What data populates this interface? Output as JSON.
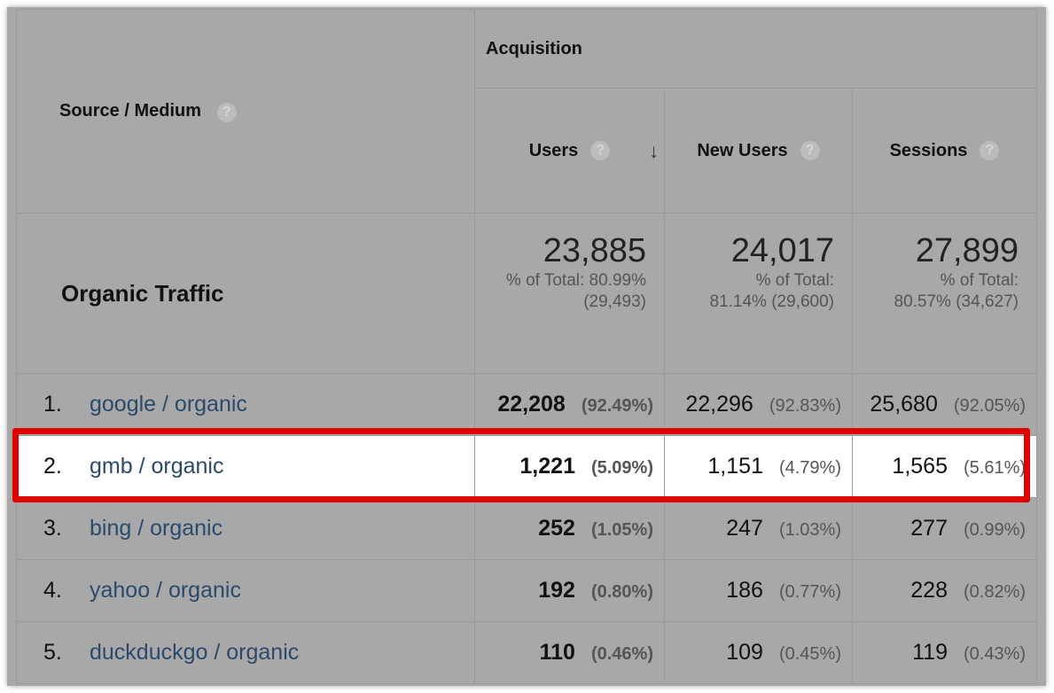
{
  "header": {
    "source_medium": "Source / Medium",
    "acquisition": "Acquisition",
    "help_glyph": "?",
    "sort_glyph": "↓",
    "columns": [
      "Users",
      "New Users",
      "Sessions"
    ]
  },
  "totals": {
    "label": "Organic Traffic",
    "users": {
      "value": "23,885",
      "line1": "% of Total: 80.99%",
      "line2": "(29,493)"
    },
    "new_users": {
      "value": "24,017",
      "line1": "% of Total:",
      "line2": "81.14% (29,600)"
    },
    "sessions": {
      "value": "27,899",
      "line1": "% of Total:",
      "line2": "80.57% (34,627)"
    }
  },
  "rows": [
    {
      "num": "1.",
      "source": "google / organic",
      "users": "22,208",
      "users_pct": "(92.49%)",
      "new_users": "22,296",
      "new_users_pct": "(92.83%)",
      "sessions": "25,680",
      "sessions_pct": "(92.05%)"
    },
    {
      "num": "2.",
      "source": "gmb / organic",
      "users": "1,221",
      "users_pct": "(5.09%)",
      "new_users": "1,151",
      "new_users_pct": "(4.79%)",
      "sessions": "1,565",
      "sessions_pct": "(5.61%)"
    },
    {
      "num": "3.",
      "source": "bing / organic",
      "users": "252",
      "users_pct": "(1.05%)",
      "new_users": "247",
      "new_users_pct": "(1.03%)",
      "sessions": "277",
      "sessions_pct": "(0.99%)"
    },
    {
      "num": "4.",
      "source": "yahoo / organic",
      "users": "192",
      "users_pct": "(0.80%)",
      "new_users": "186",
      "new_users_pct": "(0.77%)",
      "sessions": "228",
      "sessions_pct": "(0.82%)"
    },
    {
      "num": "5.",
      "source": "duckduckgo / organic",
      "users": "110",
      "users_pct": "(0.46%)",
      "new_users": "109",
      "new_users_pct": "(0.45%)",
      "sessions": "119",
      "sessions_pct": "(0.43%)"
    }
  ],
  "highlight_color": "#e00000"
}
